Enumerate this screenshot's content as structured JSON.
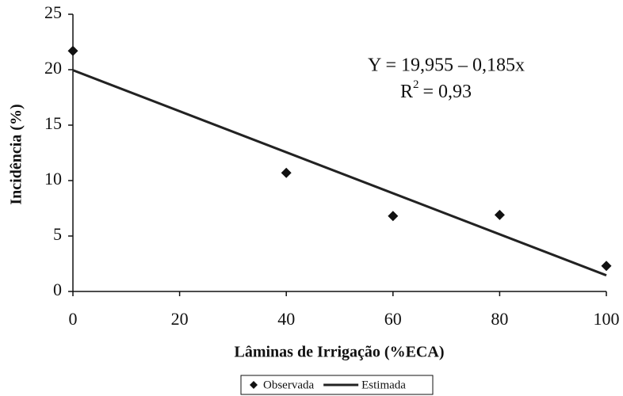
{
  "chart_data": {
    "type": "scatter",
    "xlabel": "Lâminas de Irrigação (%ECA)",
    "ylabel": "Incidência (%)",
    "xlim": [
      0,
      100
    ],
    "xticks": [
      0,
      20,
      40,
      60,
      80,
      100
    ],
    "ylim": [
      0,
      25
    ],
    "yticks": [
      0,
      5,
      10,
      15,
      20,
      25
    ],
    "series": [
      {
        "name": "Observada",
        "color": "#111111",
        "marker": "diamond",
        "x": [
          0,
          40,
          60,
          80,
          100
        ],
        "values": [
          21.7,
          10.7,
          6.8,
          6.9,
          2.3
        ]
      },
      {
        "name": "Estimada",
        "color": "#222222",
        "marker": "line",
        "x": [
          0,
          100
        ],
        "values": [
          19.955,
          1.455
        ]
      }
    ],
    "annotations": {
      "equation": "Y = 19,955 – 0,185x",
      "r2_base": "R",
      "r2_sup": "2",
      "r2_rest": "= 0,93"
    },
    "legend": "bottom"
  }
}
